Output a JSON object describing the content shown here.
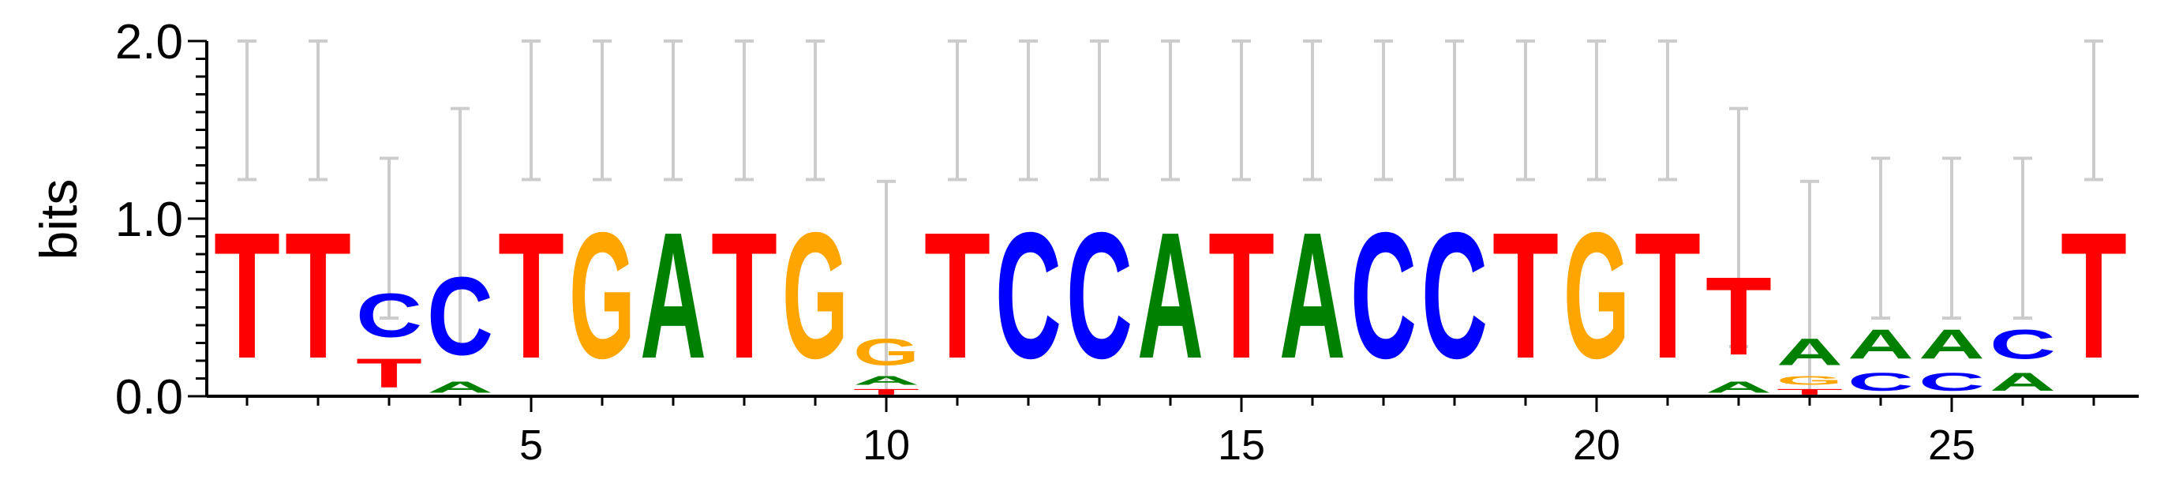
{
  "chart_data": {
    "type": "sequence-logo",
    "ylabel": "bits",
    "ylim": [
      0,
      2
    ],
    "y_ticks": [
      "0.0",
      "1.0",
      "2.0"
    ],
    "x_ticks": [
      5,
      10,
      15,
      20,
      25
    ],
    "positions": 27,
    "colors": {
      "A": "#008000",
      "C": "#0000ff",
      "G": "#ffa500",
      "T": "#ff0000"
    },
    "columns": [
      {
        "pos": 1,
        "err": [
          1.22,
          2.0
        ],
        "stack": [
          {
            "b": "T",
            "h": 1.13
          }
        ]
      },
      {
        "pos": 2,
        "err": [
          1.22,
          2.0
        ],
        "stack": [
          {
            "b": "T",
            "h": 1.13
          }
        ]
      },
      {
        "pos": 3,
        "err": [
          0.44,
          1.34
        ],
        "stack": [
          {
            "b": "T",
            "h": 0.26
          },
          {
            "b": "C",
            "h": 0.39
          }
        ]
      },
      {
        "pos": 4,
        "err": [
          0.28,
          1.62
        ],
        "stack": [
          {
            "b": "A",
            "h": 0.1
          },
          {
            "b": "C",
            "h": 0.7
          }
        ]
      },
      {
        "pos": 5,
        "err": [
          1.22,
          2.0
        ],
        "stack": [
          {
            "b": "T",
            "h": 1.13
          }
        ]
      },
      {
        "pos": 6,
        "err": [
          1.22,
          2.0
        ],
        "stack": [
          {
            "b": "G",
            "h": 1.13
          }
        ]
      },
      {
        "pos": 7,
        "err": [
          1.22,
          2.0
        ],
        "stack": [
          {
            "b": "A",
            "h": 1.13
          }
        ]
      },
      {
        "pos": 8,
        "err": [
          1.22,
          2.0
        ],
        "stack": [
          {
            "b": "T",
            "h": 1.13
          }
        ]
      },
      {
        "pos": 9,
        "err": [
          1.22,
          2.0
        ],
        "stack": [
          {
            "b": "G",
            "h": 1.13
          }
        ]
      },
      {
        "pos": 10,
        "err": [
          0.0,
          1.21
        ],
        "stack": [
          {
            "b": "T",
            "h": 0.05
          },
          {
            "b": "A",
            "h": 0.08
          },
          {
            "b": "G",
            "h": 0.24
          }
        ]
      },
      {
        "pos": 11,
        "err": [
          1.22,
          2.0
        ],
        "stack": [
          {
            "b": "T",
            "h": 1.13
          }
        ]
      },
      {
        "pos": 12,
        "err": [
          1.22,
          2.0
        ],
        "stack": [
          {
            "b": "C",
            "h": 1.13
          }
        ]
      },
      {
        "pos": 13,
        "err": [
          1.22,
          2.0
        ],
        "stack": [
          {
            "b": "C",
            "h": 1.13
          }
        ]
      },
      {
        "pos": 14,
        "err": [
          1.22,
          2.0
        ],
        "stack": [
          {
            "b": "A",
            "h": 1.13
          }
        ]
      },
      {
        "pos": 15,
        "err": [
          1.22,
          2.0
        ],
        "stack": [
          {
            "b": "T",
            "h": 1.13
          }
        ]
      },
      {
        "pos": 16,
        "err": [
          1.22,
          2.0
        ],
        "stack": [
          {
            "b": "A",
            "h": 1.13
          }
        ]
      },
      {
        "pos": 17,
        "err": [
          1.22,
          2.0
        ],
        "stack": [
          {
            "b": "C",
            "h": 1.13
          }
        ]
      },
      {
        "pos": 18,
        "err": [
          1.22,
          2.0
        ],
        "stack": [
          {
            "b": "C",
            "h": 1.13
          }
        ]
      },
      {
        "pos": 19,
        "err": [
          1.22,
          2.0
        ],
        "stack": [
          {
            "b": "T",
            "h": 1.13
          }
        ]
      },
      {
        "pos": 20,
        "err": [
          1.22,
          2.0
        ],
        "stack": [
          {
            "b": "G",
            "h": 1.13
          }
        ]
      },
      {
        "pos": 21,
        "err": [
          1.22,
          2.0
        ],
        "stack": [
          {
            "b": "T",
            "h": 1.13
          }
        ]
      },
      {
        "pos": 22,
        "err": [
          0.28,
          1.62
        ],
        "stack": [
          {
            "b": "A",
            "h": 0.1
          },
          {
            "b": "T",
            "h": 0.7
          }
        ]
      },
      {
        "pos": 23,
        "err": [
          0.0,
          1.21
        ],
        "stack": [
          {
            "b": "T",
            "h": 0.05
          },
          {
            "b": "G",
            "h": 0.08
          },
          {
            "b": "A",
            "h": 0.24
          }
        ]
      },
      {
        "pos": 24,
        "err": [
          0.44,
          1.34
        ],
        "stack": [
          {
            "b": "C",
            "h": 0.16
          },
          {
            "b": "A",
            "h": 0.26
          }
        ]
      },
      {
        "pos": 25,
        "err": [
          0.44,
          1.34
        ],
        "stack": [
          {
            "b": "C",
            "h": 0.16
          },
          {
            "b": "A",
            "h": 0.26
          }
        ]
      },
      {
        "pos": 26,
        "err": [
          0.44,
          1.34
        ],
        "stack": [
          {
            "b": "A",
            "h": 0.16
          },
          {
            "b": "C",
            "h": 0.26
          }
        ]
      },
      {
        "pos": 27,
        "err": [
          1.22,
          2.0
        ],
        "stack": [
          {
            "b": "T",
            "h": 1.13
          }
        ]
      }
    ]
  }
}
